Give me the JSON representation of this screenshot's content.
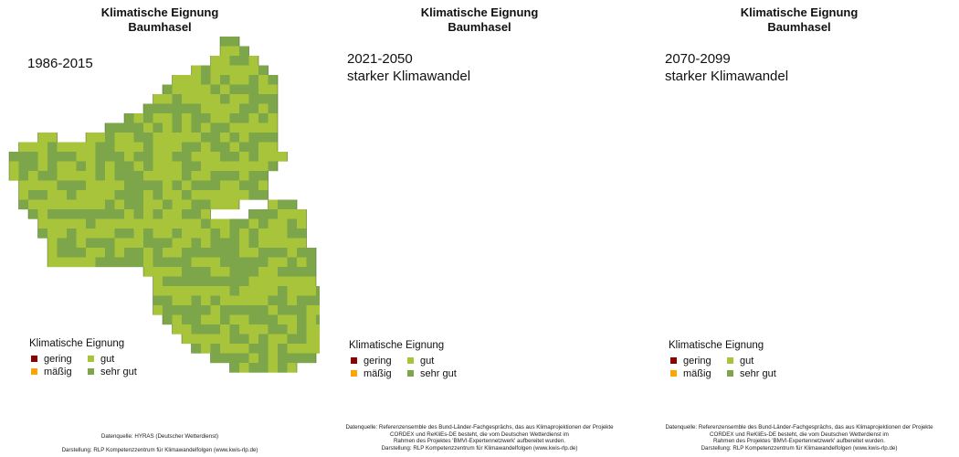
{
  "colors": {
    "gering": "#8b0000",
    "maessig": "#ffa500",
    "gut": "#a8c43a",
    "sehr_gut": "#7da64a",
    "border": "#3d5a2a"
  },
  "legend": {
    "title": "Klimatische Eignung",
    "items": [
      {
        "key": "gering",
        "label": "gering"
      },
      {
        "key": "gut",
        "label": "gut"
      },
      {
        "key": "maessig",
        "label": "mäßig"
      },
      {
        "key": "sehr_gut",
        "label": "sehr gut"
      }
    ]
  },
  "panels": [
    {
      "title_line1": "Klimatische Eignung",
      "title_line2": "Baumhasel",
      "period_line1": "1986-2015",
      "period_line2": "",
      "gut_share": 0.5,
      "source_lines": [
        "Datenquelle: HYRAS (Deutscher Wetterdienst)",
        "",
        "Darstellung: RLP Kompetenzzentrum für Klimawandelfolgen (www.kwis-rlp.de)"
      ]
    },
    {
      "title_line1": "Klimatische Eignung",
      "title_line2": "Baumhasel",
      "period_line1": "2021-2050",
      "period_line2": "starker Klimawandel",
      "gut_share": 0.03,
      "source_lines": [
        "Datenquelle: Referenzensemble des Bund-Länder-Fachgesprächs, das aus Klimaprojektionen der Projekte",
        "CORDEX und ReKliEs-DE besteht, die vom Deutschen Wetterdienst im",
        "Rahmen des Projektes 'BMVI-Expertennetzwerk' aufbereitet wurden.",
        "Darstellung: RLP Kompetenzzentrum für Klimawandelfolgen (www.kwis-rlp.de)"
      ]
    },
    {
      "title_line1": "Klimatische Eignung",
      "title_line2": "Baumhasel",
      "period_line1": "2070-2099",
      "period_line2": "starker Klimawandel",
      "gut_share": 0.06,
      "source_lines": [
        "Datenquelle: Referenzensemble des Bund-Länder-Fachgesprächs, das aus Klimaprojektionen der Projekte",
        "CORDEX und ReKliEs-DE besteht, die vom Deutschen Wetterdienst im",
        "Rahmen des Projektes 'BMVI-Expertennetzwerk' aufbereitet wurden.",
        "Darstellung: RLP Kompetenzzentrum für Klimawandelfolgen (www.kwis-rlp.de)"
      ]
    }
  ]
}
